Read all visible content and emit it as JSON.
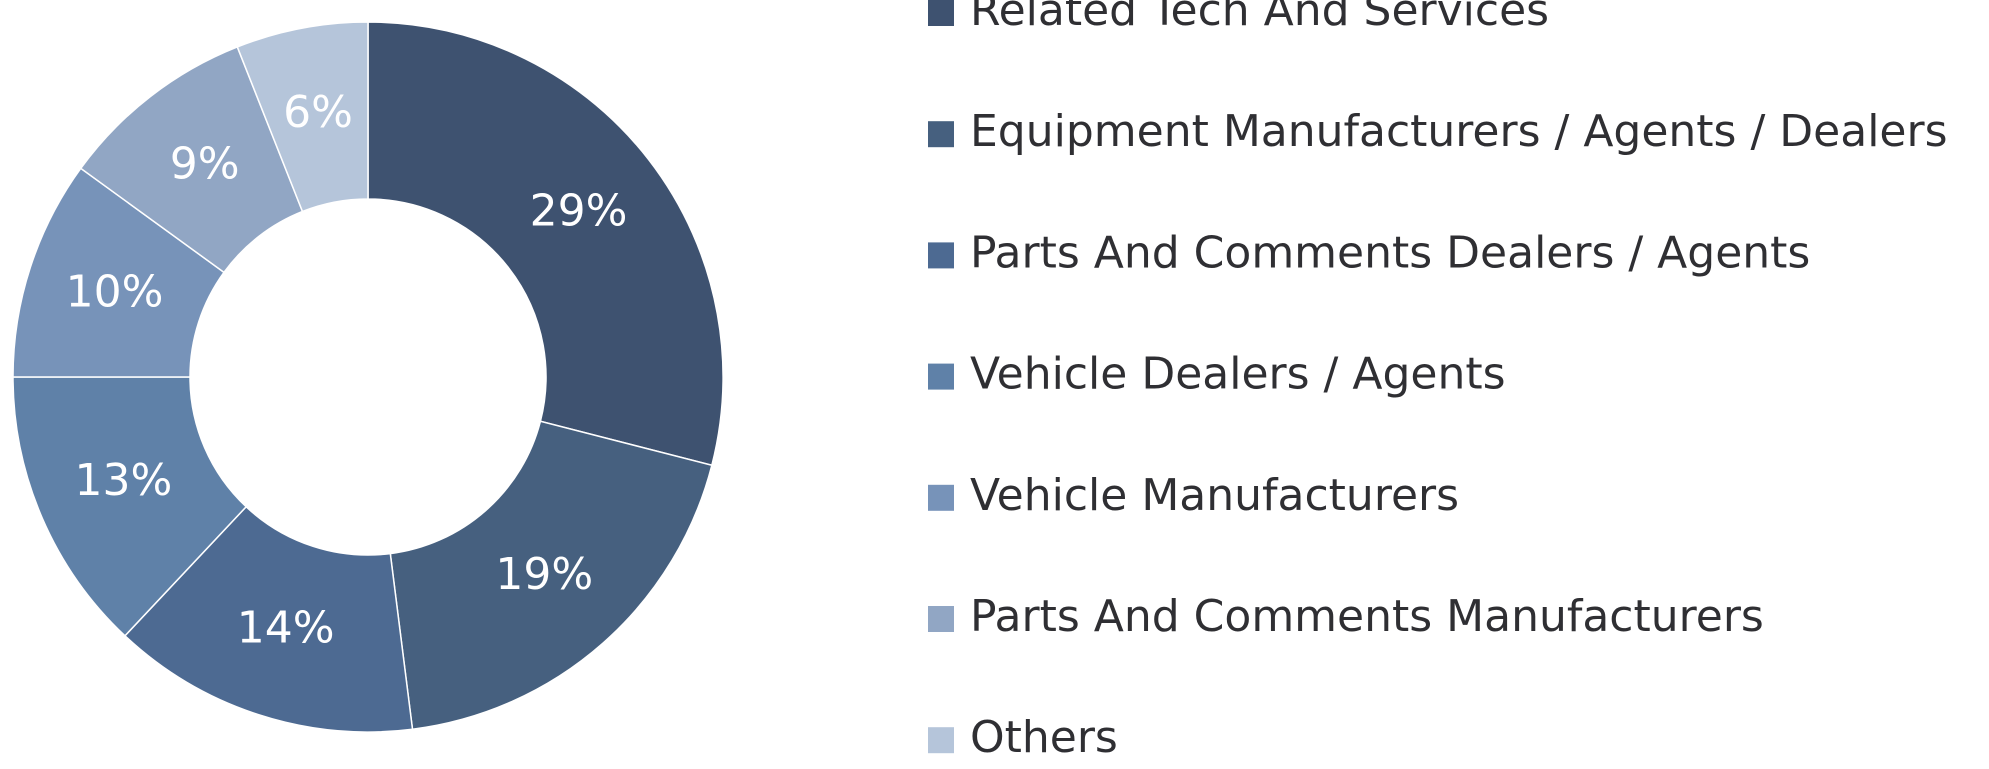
{
  "chart_data": {
    "type": "donut",
    "categories": [
      "Related Tech And Services",
      "Equipment Manufacturers / Agents / Dealers",
      "Parts And Comments Dealers / Agents",
      "Vehicle Dealers / Agents",
      "Vehicle Manufacturers",
      "Parts And Comments Manufacturers",
      "Others"
    ],
    "values": [
      29,
      19,
      14,
      13,
      10,
      9,
      6
    ],
    "value_labels": [
      "29%",
      "19%",
      "14%",
      "13%",
      "10%",
      "9%",
      "6%"
    ],
    "colors": [
      "#3e5270",
      "#46607f",
      "#4d6a92",
      "#5f81a8",
      "#7793b9",
      "#91a6c4",
      "#b5c5da"
    ],
    "legend": "right"
  }
}
